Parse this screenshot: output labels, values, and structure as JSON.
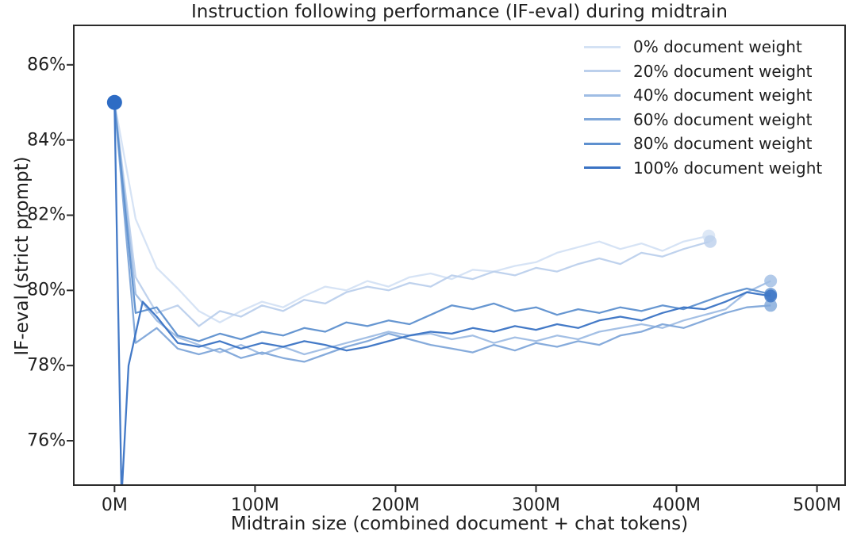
{
  "chart_data": {
    "type": "line",
    "title": "Instruction following performance (IF-eval) during midtrain",
    "xlabel": "Midtrain size (combined document + chat tokens)",
    "ylabel": "IF-eval (strict prompt)",
    "x_unit": "millions of tokens",
    "y_unit": "percent",
    "xlim": [
      -29,
      520
    ],
    "ylim": [
      74.82,
      87.05
    ],
    "grid": false,
    "legend_position": "upper right",
    "legend_frame": false,
    "x_ticks": [
      {
        "value": 0,
        "label": "0M"
      },
      {
        "value": 100,
        "label": "100M"
      },
      {
        "value": 200,
        "label": "200M"
      },
      {
        "value": 300,
        "label": "300M"
      },
      {
        "value": 400,
        "label": "400M"
      },
      {
        "value": 500,
        "label": "500M"
      }
    ],
    "y_ticks": [
      {
        "value": 86,
        "label": "86%"
      },
      {
        "value": 84,
        "label": "84%"
      },
      {
        "value": 82,
        "label": "82%"
      },
      {
        "value": 80,
        "label": "80%"
      },
      {
        "value": 78,
        "label": "78%"
      },
      {
        "value": 76,
        "label": "76%"
      }
    ],
    "start_marker": {
      "x": 0,
      "y": 85.0,
      "color": "#2e6cc4",
      "radius": 9.5
    },
    "series": [
      {
        "name": "0% document weight",
        "color": "#d4e2f4",
        "end_marker": [
          423,
          81.45
        ],
        "points": [
          [
            0,
            85.0
          ],
          [
            15,
            81.9
          ],
          [
            30,
            80.6
          ],
          [
            45,
            80.05
          ],
          [
            60,
            79.45
          ],
          [
            75,
            79.15
          ],
          [
            90,
            79.45
          ],
          [
            105,
            79.7
          ],
          [
            120,
            79.55
          ],
          [
            135,
            79.85
          ],
          [
            150,
            80.1
          ],
          [
            165,
            80.0
          ],
          [
            180,
            80.25
          ],
          [
            195,
            80.1
          ],
          [
            210,
            80.35
          ],
          [
            225,
            80.45
          ],
          [
            240,
            80.3
          ],
          [
            255,
            80.55
          ],
          [
            270,
            80.5
          ],
          [
            285,
            80.65
          ],
          [
            300,
            80.75
          ],
          [
            315,
            81.0
          ],
          [
            330,
            81.15
          ],
          [
            345,
            81.3
          ],
          [
            360,
            81.1
          ],
          [
            375,
            81.25
          ],
          [
            390,
            81.05
          ],
          [
            405,
            81.3
          ],
          [
            423,
            81.45
          ]
        ]
      },
      {
        "name": "20% document weight",
        "color": "#bcd0ec",
        "end_marker": [
          424,
          81.3
        ],
        "points": [
          [
            0,
            85.0
          ],
          [
            15,
            80.35
          ],
          [
            30,
            79.4
          ],
          [
            45,
            79.6
          ],
          [
            60,
            79.05
          ],
          [
            75,
            79.45
          ],
          [
            90,
            79.3
          ],
          [
            105,
            79.6
          ],
          [
            120,
            79.45
          ],
          [
            135,
            79.75
          ],
          [
            150,
            79.65
          ],
          [
            165,
            79.95
          ],
          [
            180,
            80.1
          ],
          [
            195,
            80.0
          ],
          [
            210,
            80.2
          ],
          [
            225,
            80.1
          ],
          [
            240,
            80.4
          ],
          [
            255,
            80.3
          ],
          [
            270,
            80.5
          ],
          [
            285,
            80.4
          ],
          [
            300,
            80.6
          ],
          [
            315,
            80.5
          ],
          [
            330,
            80.7
          ],
          [
            345,
            80.85
          ],
          [
            360,
            80.7
          ],
          [
            375,
            81.0
          ],
          [
            390,
            80.9
          ],
          [
            405,
            81.1
          ],
          [
            424,
            81.3
          ]
        ]
      },
      {
        "name": "40% document weight",
        "color": "#9fbde4",
        "end_marker": [
          467,
          80.25
        ],
        "points": [
          [
            0,
            85.0
          ],
          [
            15,
            79.9
          ],
          [
            30,
            79.2
          ],
          [
            45,
            78.75
          ],
          [
            60,
            78.55
          ],
          [
            75,
            78.35
          ],
          [
            90,
            78.55
          ],
          [
            105,
            78.3
          ],
          [
            120,
            78.5
          ],
          [
            135,
            78.3
          ],
          [
            150,
            78.45
          ],
          [
            165,
            78.6
          ],
          [
            180,
            78.75
          ],
          [
            195,
            78.9
          ],
          [
            210,
            78.8
          ],
          [
            225,
            78.85
          ],
          [
            240,
            78.7
          ],
          [
            255,
            78.8
          ],
          [
            270,
            78.6
          ],
          [
            285,
            78.75
          ],
          [
            300,
            78.65
          ],
          [
            315,
            78.8
          ],
          [
            330,
            78.7
          ],
          [
            345,
            78.9
          ],
          [
            360,
            79.0
          ],
          [
            375,
            79.1
          ],
          [
            390,
            79.0
          ],
          [
            405,
            79.2
          ],
          [
            420,
            79.35
          ],
          [
            435,
            79.5
          ],
          [
            450,
            79.95
          ],
          [
            467,
            80.25
          ]
        ]
      },
      {
        "name": "60% document weight",
        "color": "#7fa7d9",
        "end_marker": [
          467,
          79.6
        ],
        "points": [
          [
            0,
            85.0
          ],
          [
            15,
            78.6
          ],
          [
            30,
            79.0
          ],
          [
            45,
            78.45
          ],
          [
            60,
            78.3
          ],
          [
            75,
            78.45
          ],
          [
            90,
            78.2
          ],
          [
            105,
            78.35
          ],
          [
            120,
            78.2
          ],
          [
            135,
            78.1
          ],
          [
            150,
            78.3
          ],
          [
            165,
            78.5
          ],
          [
            180,
            78.65
          ],
          [
            195,
            78.85
          ],
          [
            210,
            78.7
          ],
          [
            225,
            78.55
          ],
          [
            240,
            78.45
          ],
          [
            255,
            78.35
          ],
          [
            270,
            78.55
          ],
          [
            285,
            78.4
          ],
          [
            300,
            78.6
          ],
          [
            315,
            78.5
          ],
          [
            330,
            78.65
          ],
          [
            345,
            78.55
          ],
          [
            360,
            78.8
          ],
          [
            375,
            78.9
          ],
          [
            390,
            79.1
          ],
          [
            405,
            79.0
          ],
          [
            420,
            79.2
          ],
          [
            435,
            79.4
          ],
          [
            450,
            79.55
          ],
          [
            467,
            79.6
          ]
        ]
      },
      {
        "name": "80% document weight",
        "color": "#5e90cf",
        "end_marker": [
          467,
          79.9
        ],
        "points": [
          [
            0,
            85.0
          ],
          [
            15,
            79.4
          ],
          [
            30,
            79.55
          ],
          [
            45,
            78.8
          ],
          [
            60,
            78.65
          ],
          [
            75,
            78.85
          ],
          [
            90,
            78.7
          ],
          [
            105,
            78.9
          ],
          [
            120,
            78.8
          ],
          [
            135,
            79.0
          ],
          [
            150,
            78.9
          ],
          [
            165,
            79.15
          ],
          [
            180,
            79.05
          ],
          [
            195,
            79.2
          ],
          [
            210,
            79.1
          ],
          [
            225,
            79.35
          ],
          [
            240,
            79.6
          ],
          [
            255,
            79.5
          ],
          [
            270,
            79.65
          ],
          [
            285,
            79.45
          ],
          [
            300,
            79.55
          ],
          [
            315,
            79.35
          ],
          [
            330,
            79.5
          ],
          [
            345,
            79.4
          ],
          [
            360,
            79.55
          ],
          [
            375,
            79.45
          ],
          [
            390,
            79.6
          ],
          [
            405,
            79.5
          ],
          [
            420,
            79.7
          ],
          [
            435,
            79.9
          ],
          [
            450,
            80.05
          ],
          [
            467,
            79.9
          ]
        ]
      },
      {
        "name": "100% document weight",
        "color": "#3a73c4",
        "end_marker": [
          467,
          79.85
        ],
        "points": [
          [
            0,
            85.0
          ],
          [
            5,
            74.5
          ],
          [
            10,
            78.0
          ],
          [
            20,
            79.7
          ],
          [
            30,
            79.3
          ],
          [
            45,
            78.6
          ],
          [
            60,
            78.5
          ],
          [
            75,
            78.65
          ],
          [
            90,
            78.45
          ],
          [
            105,
            78.6
          ],
          [
            120,
            78.5
          ],
          [
            135,
            78.65
          ],
          [
            150,
            78.55
          ],
          [
            165,
            78.4
          ],
          [
            180,
            78.5
          ],
          [
            195,
            78.65
          ],
          [
            210,
            78.8
          ],
          [
            225,
            78.9
          ],
          [
            240,
            78.85
          ],
          [
            255,
            79.0
          ],
          [
            270,
            78.9
          ],
          [
            285,
            79.05
          ],
          [
            300,
            78.95
          ],
          [
            315,
            79.1
          ],
          [
            330,
            79.0
          ],
          [
            345,
            79.2
          ],
          [
            360,
            79.3
          ],
          [
            375,
            79.2
          ],
          [
            390,
            79.4
          ],
          [
            405,
            79.55
          ],
          [
            420,
            79.5
          ],
          [
            435,
            79.7
          ],
          [
            450,
            79.95
          ],
          [
            467,
            79.85
          ]
        ]
      }
    ]
  }
}
